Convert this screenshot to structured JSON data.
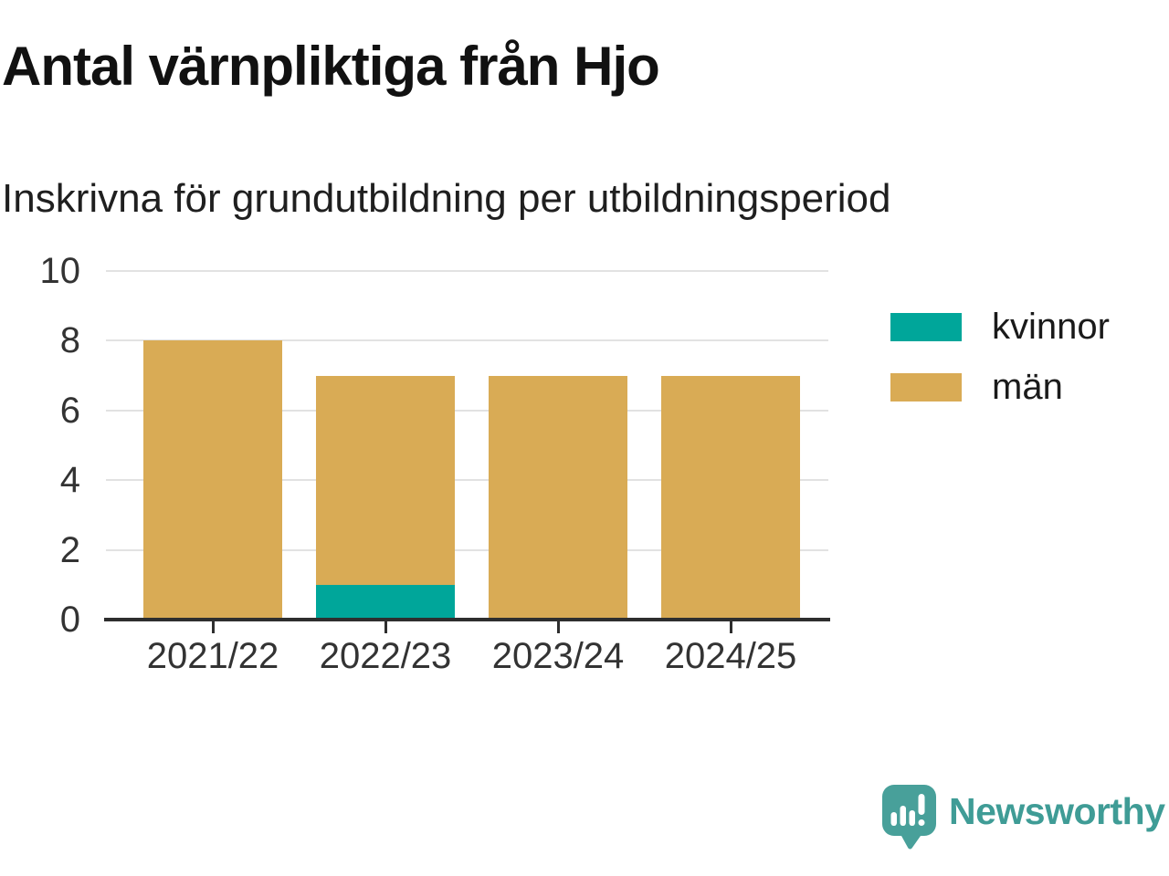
{
  "header": {
    "title": "Antal värnpliktiga från Hjo",
    "subtitle": "Inskrivna för grundutbildning per utbildningsperiod"
  },
  "chart_data": {
    "type": "bar",
    "stacked": true,
    "title": "Antal värnpliktiga från Hjo",
    "subtitle": "Inskrivna för grundutbildning per utbildningsperiod",
    "categories": [
      "2021/22",
      "2022/23",
      "2023/24",
      "2024/25"
    ],
    "series": [
      {
        "name": "kvinnor",
        "color": "#00a69a",
        "values": [
          0,
          1,
          0,
          0
        ]
      },
      {
        "name": "män",
        "color": "#d9ab55",
        "values": [
          8,
          6,
          7,
          7
        ]
      }
    ],
    "totals": [
      8,
      7,
      7,
      7
    ],
    "xlabel": "",
    "ylabel": "",
    "ylim": [
      0,
      10
    ],
    "yticks": [
      0,
      2,
      4,
      6,
      8,
      10
    ],
    "grid": true,
    "legend_position": "right"
  },
  "legend": {
    "items": [
      {
        "label": "kvinnor",
        "color": "#00a69a"
      },
      {
        "label": "män",
        "color": "#d9ab55"
      }
    ]
  },
  "footer": {
    "brand": "Newsworthy",
    "logo_icon": "newsworthy-speech-bubble-bar-chart-icon"
  },
  "colors": {
    "kvinnor": "#00a69a",
    "man": "#d9ab55",
    "gridline": "#e2e2e2",
    "axis": "#2e2e2e",
    "tick_text": "#333333",
    "title_text": "#111111",
    "logo_teal": "#48a09a"
  }
}
